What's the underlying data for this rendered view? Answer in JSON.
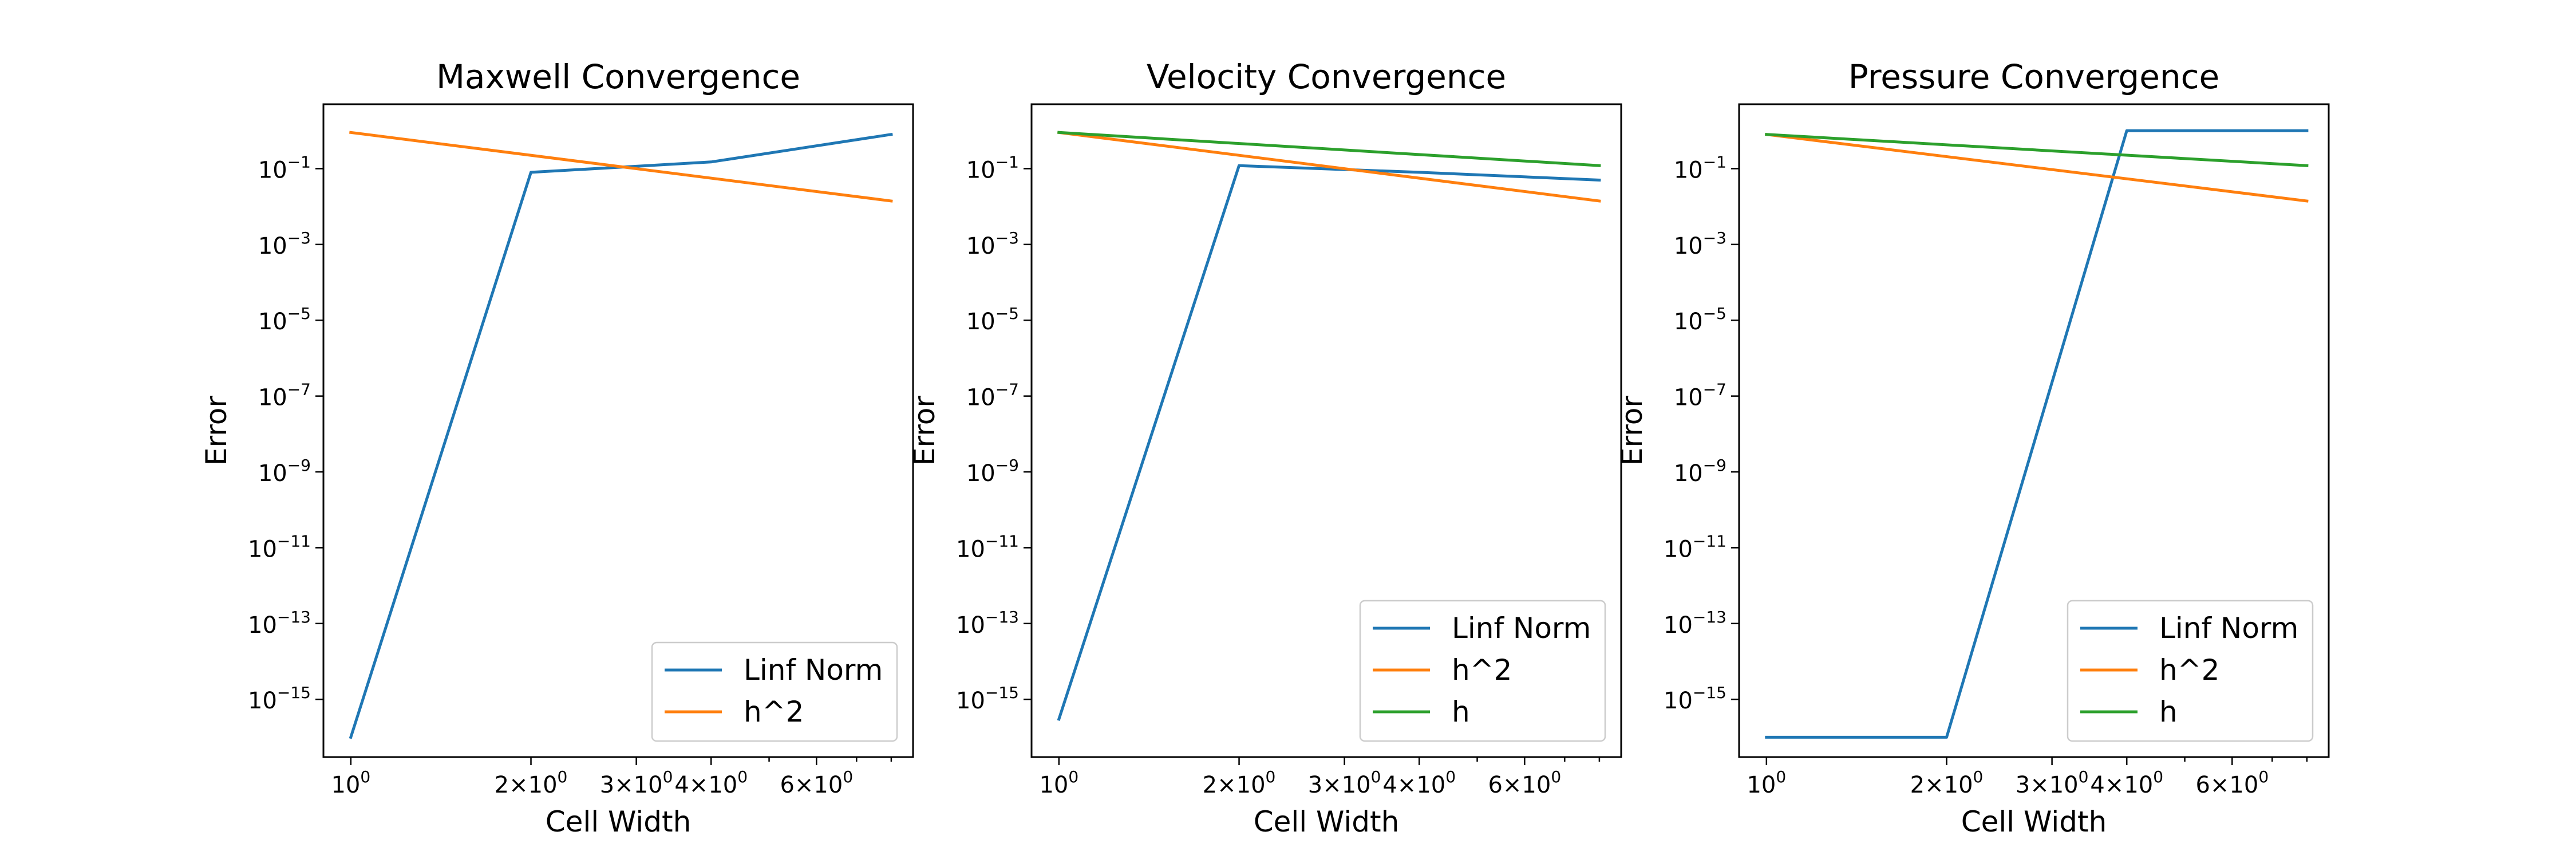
{
  "chart_data": [
    {
      "type": "line",
      "title": "Maxwell Convergence",
      "xlabel": "Cell Width",
      "ylabel": "Error",
      "xscale": "log",
      "yscale": "log",
      "xlim": [
        0.9,
        8.7
      ],
      "ylim": [
        3e-17,
        5
      ],
      "xticks": [
        {
          "value": 1,
          "mantissa": "",
          "exponent": "0"
        },
        {
          "value": 2,
          "mantissa": "2×",
          "exponent": "0"
        },
        {
          "value": 3,
          "mantissa": "3×",
          "exponent": "0"
        },
        {
          "value": 4,
          "mantissa": "4×",
          "exponent": "0"
        },
        {
          "value": 6,
          "mantissa": "6×",
          "exponent": "0"
        }
      ],
      "yticks": [
        {
          "value": 1e-15,
          "exponent": "−15"
        },
        {
          "value": 1e-13,
          "exponent": "−13"
        },
        {
          "value": 1e-11,
          "exponent": "−11"
        },
        {
          "value": 1e-09,
          "exponent": "−9"
        },
        {
          "value": 1e-07,
          "exponent": "−7"
        },
        {
          "value": 1e-05,
          "exponent": "−5"
        },
        {
          "value": 0.001,
          "exponent": "−3"
        },
        {
          "value": 0.1,
          "exponent": "−1"
        }
      ],
      "legend_position": "lower right",
      "series": [
        {
          "name": "Linf Norm",
          "color": "#1f77b4",
          "x": [
            1,
            2,
            4,
            8
          ],
          "y": [
            1e-16,
            0.08,
            0.15,
            0.8
          ]
        },
        {
          "name": "h^2",
          "color": "#ff7f0e",
          "x": [
            1,
            8
          ],
          "y": [
            0.9,
            0.014
          ]
        }
      ]
    },
    {
      "type": "line",
      "title": "Velocity Convergence",
      "xlabel": "Cell Width",
      "ylabel": "Error",
      "xscale": "log",
      "yscale": "log",
      "xlim": [
        0.9,
        8.7
      ],
      "ylim": [
        3e-17,
        5
      ],
      "xticks": [
        {
          "value": 1,
          "mantissa": "",
          "exponent": "0"
        },
        {
          "value": 2,
          "mantissa": "2×",
          "exponent": "0"
        },
        {
          "value": 3,
          "mantissa": "3×",
          "exponent": "0"
        },
        {
          "value": 4,
          "mantissa": "4×",
          "exponent": "0"
        },
        {
          "value": 6,
          "mantissa": "6×",
          "exponent": "0"
        }
      ],
      "yticks": [
        {
          "value": 1e-15,
          "exponent": "−15"
        },
        {
          "value": 1e-13,
          "exponent": "−13"
        },
        {
          "value": 1e-11,
          "exponent": "−11"
        },
        {
          "value": 1e-09,
          "exponent": "−9"
        },
        {
          "value": 1e-07,
          "exponent": "−7"
        },
        {
          "value": 1e-05,
          "exponent": "−5"
        },
        {
          "value": 0.001,
          "exponent": "−3"
        },
        {
          "value": 0.1,
          "exponent": "−1"
        }
      ],
      "legend_position": "lower right",
      "series": [
        {
          "name": "Linf Norm",
          "color": "#1f77b4",
          "x": [
            1,
            2,
            4,
            8
          ],
          "y": [
            3e-16,
            0.12,
            0.08,
            0.05
          ]
        },
        {
          "name": "h^2",
          "color": "#ff7f0e",
          "x": [
            1,
            8
          ],
          "y": [
            0.9,
            0.014
          ]
        },
        {
          "name": "h",
          "color": "#2ca02c",
          "x": [
            1,
            8
          ],
          "y": [
            0.9,
            0.12
          ]
        }
      ]
    },
    {
      "type": "line",
      "title": "Pressure Convergence",
      "xlabel": "Cell Width",
      "ylabel": "Error",
      "xscale": "log",
      "yscale": "log",
      "xlim": [
        0.9,
        8.7
      ],
      "ylim": [
        3e-17,
        5
      ],
      "xticks": [
        {
          "value": 1,
          "mantissa": "",
          "exponent": "0"
        },
        {
          "value": 2,
          "mantissa": "2×",
          "exponent": "0"
        },
        {
          "value": 3,
          "mantissa": "3×",
          "exponent": "0"
        },
        {
          "value": 4,
          "mantissa": "4×",
          "exponent": "0"
        },
        {
          "value": 6,
          "mantissa": "6×",
          "exponent": "0"
        }
      ],
      "yticks": [
        {
          "value": 1e-15,
          "exponent": "−15"
        },
        {
          "value": 1e-13,
          "exponent": "−13"
        },
        {
          "value": 1e-11,
          "exponent": "−11"
        },
        {
          "value": 1e-09,
          "exponent": "−9"
        },
        {
          "value": 1e-07,
          "exponent": "−7"
        },
        {
          "value": 1e-05,
          "exponent": "−5"
        },
        {
          "value": 0.001,
          "exponent": "−3"
        },
        {
          "value": 0.1,
          "exponent": "−1"
        }
      ],
      "legend_position": "lower right",
      "series": [
        {
          "name": "Linf Norm",
          "color": "#1f77b4",
          "x": [
            1,
            2,
            4,
            8
          ],
          "y": [
            1e-16,
            1e-16,
            1.0,
            1.0
          ]
        },
        {
          "name": "h^2",
          "color": "#ff7f0e",
          "x": [
            1,
            8
          ],
          "y": [
            0.8,
            0.014
          ]
        },
        {
          "name": "h",
          "color": "#2ca02c",
          "x": [
            1,
            8
          ],
          "y": [
            0.8,
            0.12
          ]
        }
      ]
    }
  ]
}
